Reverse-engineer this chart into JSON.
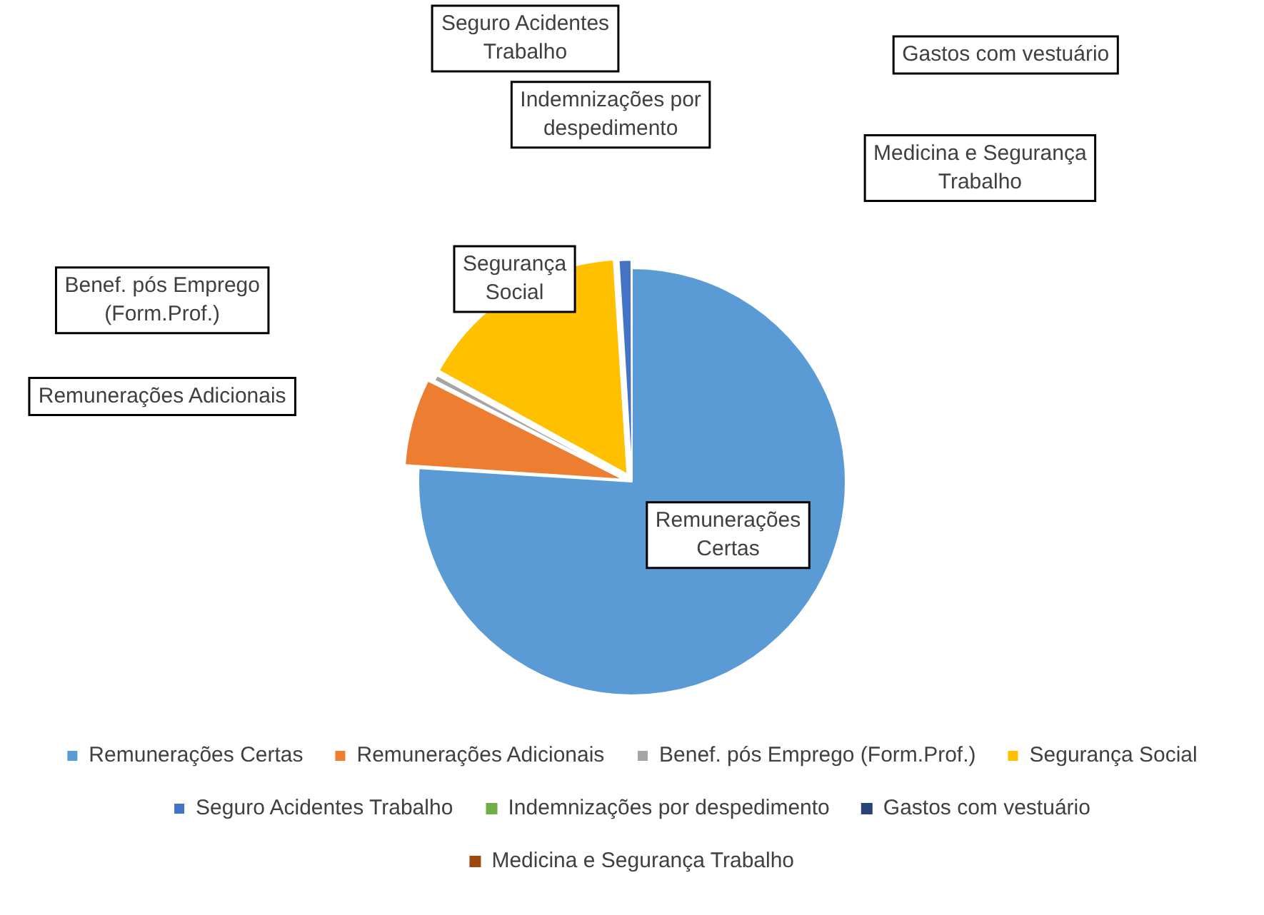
{
  "chart_data": {
    "type": "pie",
    "categories": [
      "Remunerações Certas",
      "Remunerações Adicionais",
      "Benef. pós Emprego (Form.Prof.)",
      "Segurança Social",
      "Seguro Acidentes Trabalho",
      "Indemnizações por despedimento",
      "Gastos com vestuário",
      "Medicina e Segurança Trabalho"
    ],
    "values": [
      76,
      6.5,
      0.5,
      16,
      1,
      0,
      0,
      0
    ],
    "colors": [
      "#5b9bd5",
      "#ed7d31",
      "#a5a5a5",
      "#ffc000",
      "#4472c4",
      "#70ad47",
      "#264478",
      "#9e480e"
    ],
    "legend": "bottom"
  }
}
